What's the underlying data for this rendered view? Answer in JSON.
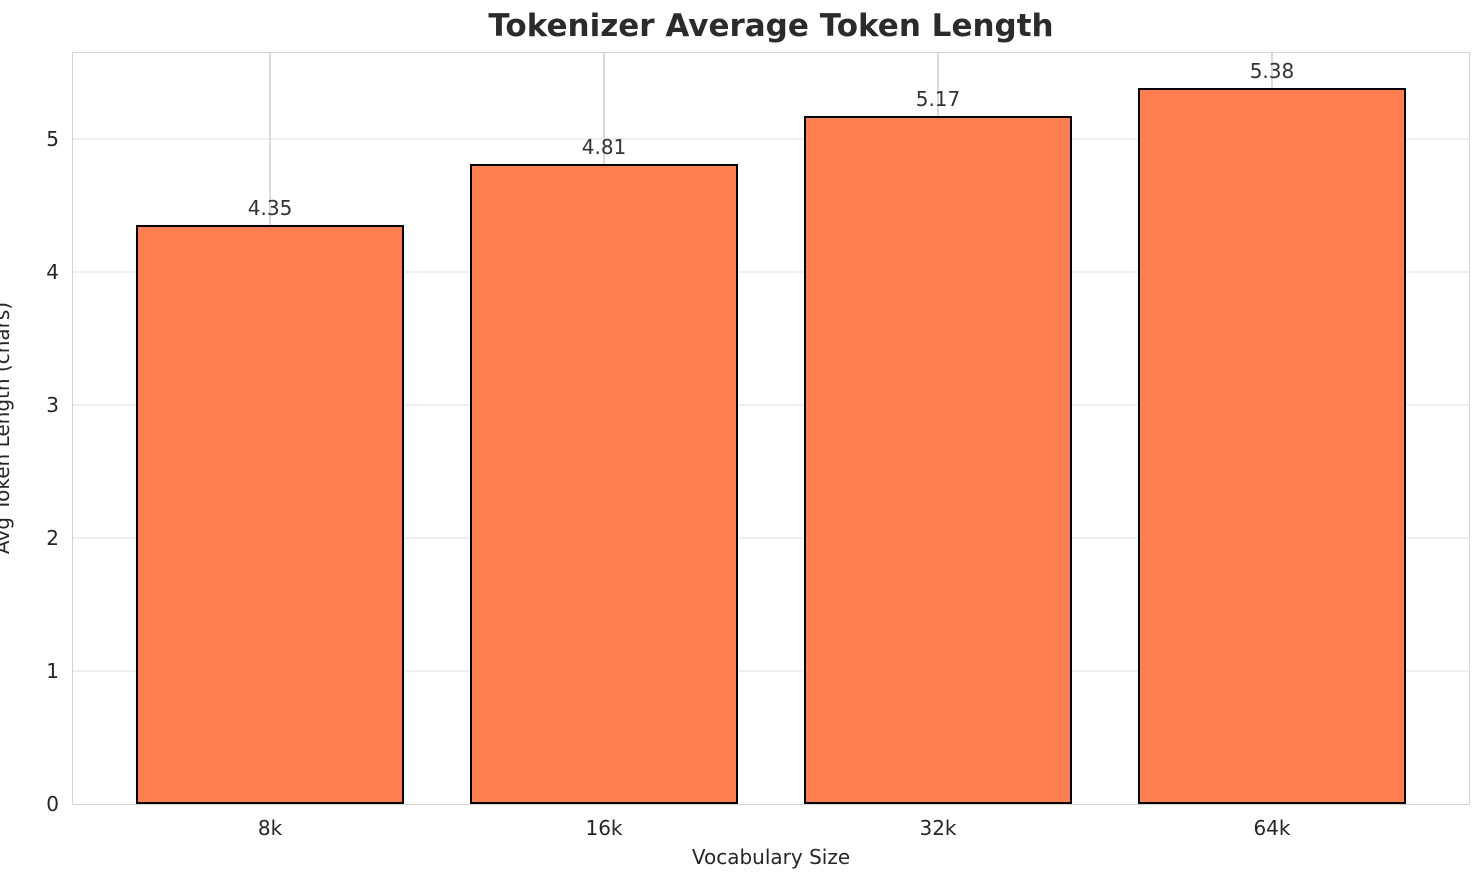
{
  "chart_data": {
    "type": "bar",
    "title": "Tokenizer Average Token Length",
    "xlabel": "Vocabulary Size",
    "ylabel": "Avg Token Length (chars)",
    "categories": [
      "8k",
      "16k",
      "32k",
      "64k"
    ],
    "values": [
      4.35,
      4.81,
      5.17,
      5.38
    ],
    "value_labels": [
      "4.35",
      "4.81",
      "5.17",
      "5.38"
    ],
    "yticks": [
      0,
      1,
      2,
      3,
      4,
      5
    ],
    "ytick_labels": [
      "0",
      "1",
      "2",
      "3",
      "4",
      "5"
    ],
    "ylim": [
      0,
      5.645
    ],
    "grid": true,
    "legend_position": "none",
    "bar_width_fraction": 0.8,
    "x_edge_padding": 0.59,
    "colors": {
      "bar_fill": "#FF7F50",
      "bar_edge": "#000000",
      "grid_horizontal": "#EFEFEF",
      "grid_vertical": "#DBDBDB",
      "spine": "#D4D4D4",
      "tick_text": "#262626",
      "value_text": "#333333",
      "title_text": "#2B2B2B"
    }
  }
}
